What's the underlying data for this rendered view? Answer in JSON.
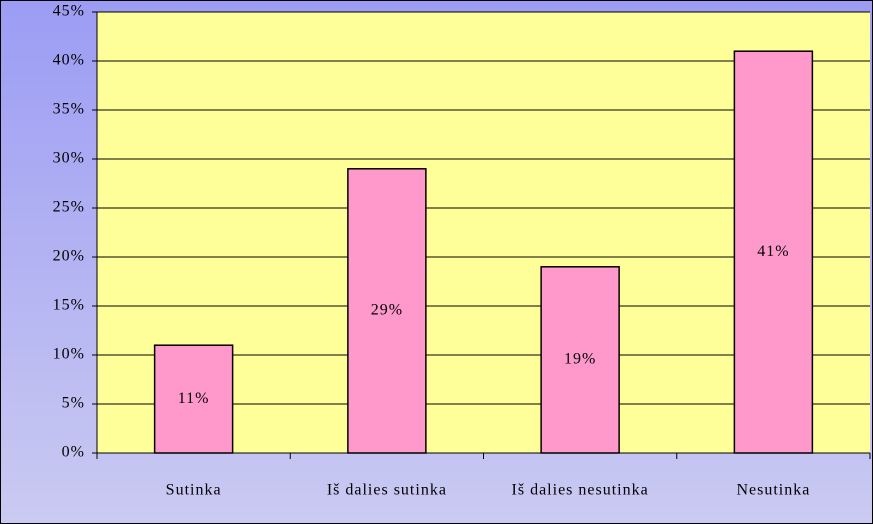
{
  "chart_data": {
    "type": "bar",
    "categories": [
      "Sutinka",
      "Iš dalies sutinka",
      "Iš dalies nesutinka",
      "Nesutinka"
    ],
    "values": [
      11,
      29,
      19,
      41
    ],
    "value_labels": [
      "11%",
      "29%",
      "19%",
      "41%"
    ],
    "color": "#ff99cc",
    "ylim": [
      0,
      45
    ],
    "yticks": [
      {
        "value": 0,
        "label": "0%"
      },
      {
        "value": 5,
        "label": "5%"
      },
      {
        "value": 10,
        "label": "10%"
      },
      {
        "value": 15,
        "label": "15%"
      },
      {
        "value": 20,
        "label": "20%"
      },
      {
        "value": 25,
        "label": "25%"
      },
      {
        "value": 30,
        "label": "30%"
      },
      {
        "value": 35,
        "label": "35%"
      },
      {
        "value": 40,
        "label": "40%"
      },
      {
        "value": 45,
        "label": "45%"
      }
    ],
    "grid": true
  }
}
